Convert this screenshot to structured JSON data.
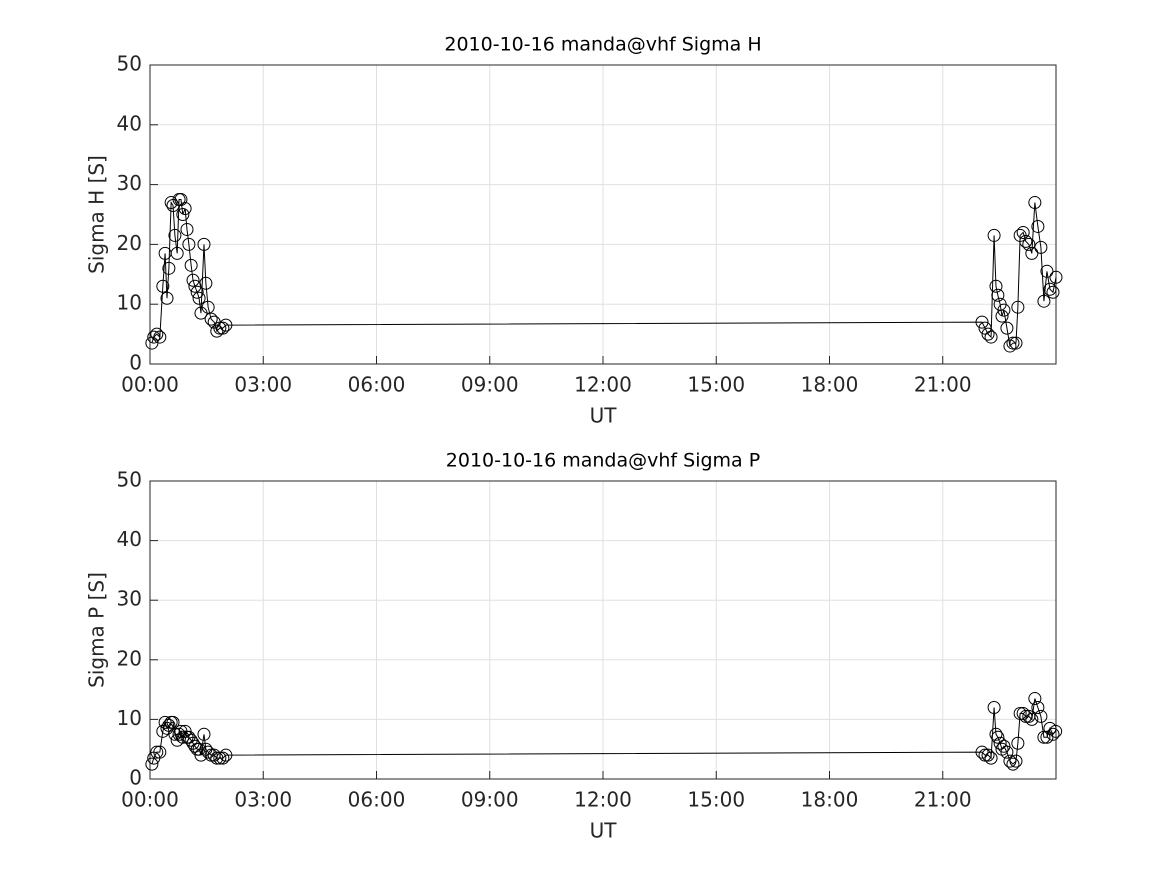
{
  "chart_data": [
    {
      "type": "line",
      "title": "2010-10-16  manda@vhf Sigma H",
      "x_label": "UT",
      "y_label": "Sigma H [S]",
      "xlim": [
        0,
        24
      ],
      "ylim": [
        0,
        50
      ],
      "xticks": [
        {
          "value": 0,
          "label": "00:00"
        },
        {
          "value": 3,
          "label": "03:00"
        },
        {
          "value": 6,
          "label": "06:00"
        },
        {
          "value": 9,
          "label": "09:00"
        },
        {
          "value": 12,
          "label": "12:00"
        },
        {
          "value": 15,
          "label": "15:00"
        },
        {
          "value": 18,
          "label": "18:00"
        },
        {
          "value": 21,
          "label": "21:00"
        }
      ],
      "yticks": [
        0,
        10,
        20,
        30,
        40,
        50
      ],
      "grid": true,
      "marker": "circle",
      "series": [
        {
          "color": "#000000",
          "x": [
            0.05,
            0.1,
            0.18,
            0.26,
            0.34,
            0.4,
            0.45,
            0.5,
            0.56,
            0.61,
            0.66,
            0.72,
            0.77,
            0.82,
            0.87,
            0.93,
            0.98,
            1.03,
            1.09,
            1.14,
            1.19,
            1.25,
            1.3,
            1.35,
            1.43,
            1.48,
            1.54,
            1.62,
            1.7,
            1.77,
            1.85,
            1.93,
            2.01,
            22.04,
            22.12,
            22.2,
            22.28,
            22.36,
            22.41,
            22.46,
            22.52,
            22.57,
            22.62,
            22.7,
            22.78,
            22.86,
            22.94,
            22.99,
            23.05,
            23.13,
            23.2,
            23.28,
            23.36,
            23.44,
            23.52,
            23.6,
            23.68,
            23.76,
            23.84,
            23.92,
            24.0
          ],
          "values": [
            3.5,
            4.5,
            5,
            4.5,
            13,
            18.5,
            11,
            16,
            27,
            26.5,
            21.5,
            18.5,
            27.5,
            27.5,
            25,
            26,
            22.5,
            20,
            16.5,
            14,
            13,
            12,
            11,
            8.5,
            20,
            13.5,
            9.5,
            7.5,
            7,
            5.5,
            6,
            6,
            6.5,
            7,
            6,
            5,
            4.5,
            21.5,
            13,
            11.5,
            10,
            8,
            9,
            6,
            3,
            3.5,
            3.5,
            9.5,
            21.5,
            22,
            20.5,
            20,
            18.5,
            27,
            23,
            19.5,
            10.5,
            15.5,
            12.5,
            12,
            14.5
          ]
        }
      ]
    },
    {
      "type": "line",
      "title": "2010-10-16  manda@vhf Sigma P",
      "x_label": "UT",
      "y_label": "Sigma P [S]",
      "xlim": [
        0,
        24
      ],
      "ylim": [
        0,
        50
      ],
      "xticks": [
        {
          "value": 0,
          "label": "00:00"
        },
        {
          "value": 3,
          "label": "03:00"
        },
        {
          "value": 6,
          "label": "06:00"
        },
        {
          "value": 9,
          "label": "09:00"
        },
        {
          "value": 12,
          "label": "12:00"
        },
        {
          "value": 15,
          "label": "15:00"
        },
        {
          "value": 18,
          "label": "18:00"
        },
        {
          "value": 21,
          "label": "21:00"
        }
      ],
      "yticks": [
        0,
        10,
        20,
        30,
        40,
        50
      ],
      "grid": true,
      "marker": "circle",
      "series": [
        {
          "color": "#000000",
          "x": [
            0.05,
            0.1,
            0.18,
            0.26,
            0.34,
            0.4,
            0.45,
            0.5,
            0.56,
            0.61,
            0.66,
            0.72,
            0.77,
            0.82,
            0.87,
            0.93,
            0.98,
            1.03,
            1.09,
            1.14,
            1.19,
            1.25,
            1.3,
            1.35,
            1.43,
            1.48,
            1.54,
            1.62,
            1.7,
            1.77,
            1.85,
            1.93,
            2.01,
            22.04,
            22.12,
            22.2,
            22.28,
            22.36,
            22.41,
            22.46,
            22.52,
            22.57,
            22.62,
            22.7,
            22.78,
            22.86,
            22.94,
            22.99,
            23.05,
            23.13,
            23.2,
            23.28,
            23.36,
            23.44,
            23.52,
            23.6,
            23.68,
            23.76,
            23.84,
            23.92,
            23.99
          ],
          "values": [
            2.5,
            3.5,
            4.5,
            4.5,
            8,
            9.5,
            8.5,
            9,
            9.5,
            9.5,
            7.5,
            6.5,
            7.5,
            8,
            7,
            8,
            7,
            7,
            6.5,
            6,
            5.5,
            5,
            5,
            4,
            7.5,
            5,
            4.5,
            4,
            4,
            3.5,
            3.5,
            3.5,
            4,
            4.5,
            4,
            4,
            3.5,
            12,
            7.5,
            7,
            6,
            5,
            5.5,
            4.5,
            3,
            2.5,
            3,
            6,
            11,
            11,
            10.5,
            10.5,
            10,
            13.5,
            12,
            10.5,
            7,
            7,
            8.5,
            7.5,
            8
          ]
        }
      ]
    }
  ]
}
